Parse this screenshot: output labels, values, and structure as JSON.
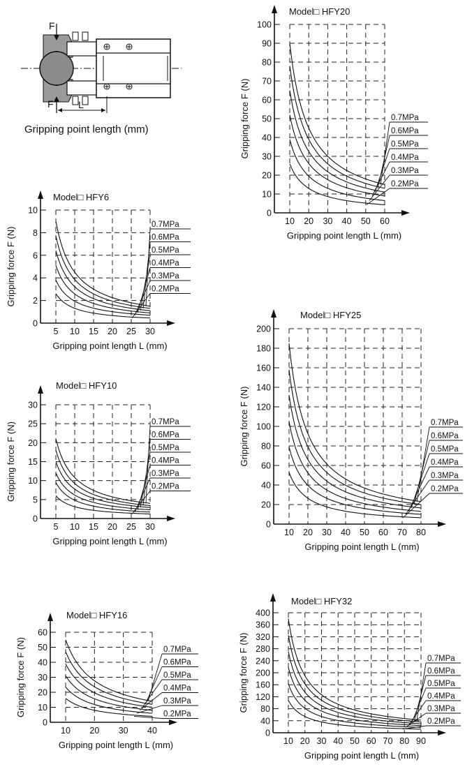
{
  "diagram": {
    "caption": "Gripping point length  (mm)",
    "force_label_top": "F",
    "force_label_bottom": "F",
    "length_label": "L"
  },
  "chart_data": [
    {
      "type": "line",
      "title": "Model□ HFY6",
      "xlabel": "Gripping point length L (mm)",
      "ylabel": "Gripping force F   (N)",
      "xticks": [
        5,
        10,
        15,
        20,
        25,
        30
      ],
      "yticks": [
        0,
        2,
        4,
        6,
        8,
        10
      ],
      "xlim": [
        5,
        30
      ],
      "ylim": [
        0,
        10
      ],
      "series": [
        {
          "name": "0.7MPa",
          "x": [
            5,
            30
          ],
          "y": [
            9.0,
            1.5
          ]
        },
        {
          "name": "0.6MPa",
          "x": [
            5,
            30
          ],
          "y": [
            7.7,
            1.3
          ]
        },
        {
          "name": "0.5MPa",
          "x": [
            5,
            30
          ],
          "y": [
            6.4,
            1.1
          ]
        },
        {
          "name": "0.4MPa",
          "x": [
            5,
            30
          ],
          "y": [
            5.1,
            0.9
          ]
        },
        {
          "name": "0.3MPa",
          "x": [
            5,
            30
          ],
          "y": [
            3.8,
            0.7
          ]
        },
        {
          "name": "0.2MPa",
          "x": [
            5,
            30
          ],
          "y": [
            2.6,
            0.45
          ]
        }
      ]
    },
    {
      "type": "line",
      "title": "Model□ HFY10",
      "xlabel": "Gripping point length L (mm)",
      "ylabel": "Gripping force F   (N)",
      "xticks": [
        5,
        10,
        15,
        20,
        25,
        30
      ],
      "yticks": [
        0,
        5,
        10,
        15,
        20,
        25,
        30
      ],
      "xlim": [
        5,
        30
      ],
      "ylim": [
        0,
        30
      ],
      "series": [
        {
          "name": "0.7MPa",
          "x": [
            5,
            30
          ],
          "y": [
            21,
            4.0
          ]
        },
        {
          "name": "0.6MPa",
          "x": [
            5,
            30
          ],
          "y": [
            18,
            3.4
          ]
        },
        {
          "name": "0.5MPa",
          "x": [
            5,
            30
          ],
          "y": [
            15,
            2.9
          ]
        },
        {
          "name": "0.4MPa",
          "x": [
            5,
            30
          ],
          "y": [
            12,
            2.3
          ]
        },
        {
          "name": "0.3MPa",
          "x": [
            5,
            30
          ],
          "y": [
            9.5,
            1.7
          ]
        },
        {
          "name": "0.2MPa",
          "x": [
            5,
            30
          ],
          "y": [
            6,
            1.2
          ]
        }
      ]
    },
    {
      "type": "line",
      "title": "Model□ HFY16",
      "xlabel": "Gripping point length L (mm)",
      "ylabel": "Gripping force F   (N)",
      "xticks": [
        10,
        20,
        30,
        40
      ],
      "yticks": [
        0,
        10,
        20,
        30,
        40,
        50,
        60
      ],
      "xlim": [
        10,
        40
      ],
      "ylim": [
        0,
        60
      ],
      "series": [
        {
          "name": "0.7MPa",
          "x": [
            10,
            40
          ],
          "y": [
            55,
            14
          ]
        },
        {
          "name": "0.6MPa",
          "x": [
            10,
            40
          ],
          "y": [
            47,
            12
          ]
        },
        {
          "name": "0.5MPa",
          "x": [
            10,
            40
          ],
          "y": [
            39,
            10
          ]
        },
        {
          "name": "0.4MPa",
          "x": [
            10,
            40
          ],
          "y": [
            31,
            8
          ]
        },
        {
          "name": "0.3MPa",
          "x": [
            10,
            40
          ],
          "y": [
            23.5,
            6
          ]
        },
        {
          "name": "0.2MPa",
          "x": [
            10,
            40
          ],
          "y": [
            16,
            4
          ]
        }
      ]
    },
    {
      "type": "line",
      "title": "Model□ HFY20",
      "xlabel": "Gripping point length L (mm)",
      "ylabel": "Gripping force F   (N)",
      "xticks": [
        10,
        20,
        30,
        40,
        50,
        60
      ],
      "yticks": [
        0,
        10,
        20,
        30,
        40,
        50,
        60,
        70,
        80,
        90,
        100
      ],
      "xlim": [
        10,
        60
      ],
      "ylim": [
        0,
        100
      ],
      "series": [
        {
          "name": "0.7MPa",
          "x": [
            10,
            60
          ],
          "y": [
            90,
            15
          ]
        },
        {
          "name": "0.6MPa",
          "x": [
            10,
            60
          ],
          "y": [
            78,
            13
          ]
        },
        {
          "name": "0.5MPa",
          "x": [
            10,
            60
          ],
          "y": [
            65,
            11
          ]
        },
        {
          "name": "0.4MPa",
          "x": [
            10,
            60
          ],
          "y": [
            52,
            9
          ]
        },
        {
          "name": "0.3MPa",
          "x": [
            10,
            60
          ],
          "y": [
            39,
            6.5
          ]
        },
        {
          "name": "0.2MPa",
          "x": [
            10,
            60
          ],
          "y": [
            26,
            4.3
          ]
        }
      ]
    },
    {
      "type": "line",
      "title": "Model□ HFY25",
      "xlabel": "Gripping point length L (mm)",
      "ylabel": "Gripping force F   (N)",
      "xticks": [
        10,
        20,
        30,
        40,
        50,
        60,
        70,
        80
      ],
      "yticks": [
        0,
        20,
        40,
        60,
        80,
        100,
        120,
        140,
        160,
        180,
        200
      ],
      "xlim": [
        10,
        80
      ],
      "ylim": [
        0,
        200
      ],
      "series": [
        {
          "name": "0.7MPa",
          "x": [
            10,
            80
          ],
          "y": [
            185,
            23
          ]
        },
        {
          "name": "0.6MPa",
          "x": [
            10,
            80
          ],
          "y": [
            158,
            20
          ]
        },
        {
          "name": "0.5MPa",
          "x": [
            10,
            80
          ],
          "y": [
            132,
            16.5
          ]
        },
        {
          "name": "0.4MPa",
          "x": [
            10,
            80
          ],
          "y": [
            105,
            13
          ]
        },
        {
          "name": "0.3MPa",
          "x": [
            10,
            80
          ],
          "y": [
            79,
            10
          ]
        },
        {
          "name": "0.2MPa",
          "x": [
            10,
            80
          ],
          "y": [
            53,
            6.5
          ]
        }
      ]
    },
    {
      "type": "line",
      "title": "Model□ HFY32",
      "xlabel": "Gripping point length L (mm)",
      "ylabel": "Gripping force F   (N)",
      "xticks": [
        10,
        20,
        30,
        40,
        50,
        60,
        70,
        80,
        90
      ],
      "yticks": [
        0,
        40,
        80,
        120,
        160,
        200,
        240,
        280,
        320,
        360,
        400
      ],
      "xlim": [
        10,
        90
      ],
      "ylim": [
        0,
        400
      ],
      "series": [
        {
          "name": "0.7MPa",
          "x": [
            10,
            90
          ],
          "y": [
            380,
            42
          ]
        },
        {
          "name": "0.6MPa",
          "x": [
            10,
            90
          ],
          "y": [
            325,
            36
          ]
        },
        {
          "name": "0.5MPa",
          "x": [
            10,
            90
          ],
          "y": [
            270,
            30
          ]
        },
        {
          "name": "0.4MPa",
          "x": [
            10,
            90
          ],
          "y": [
            217,
            24
          ]
        },
        {
          "name": "0.3MPa",
          "x": [
            10,
            90
          ],
          "y": [
            163,
            18
          ]
        },
        {
          "name": "0.2MPa",
          "x": [
            10,
            90
          ],
          "y": [
            108,
            12
          ]
        }
      ]
    }
  ]
}
